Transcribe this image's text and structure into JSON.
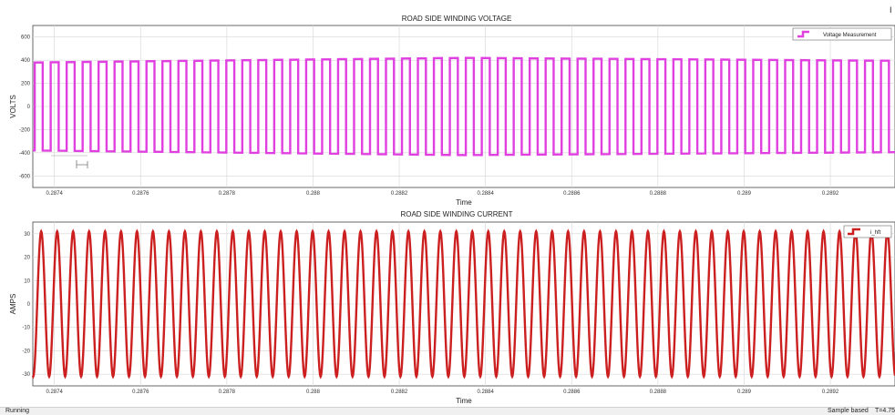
{
  "status_bar": {
    "left": "Running",
    "mode": "Sample based",
    "time": "T=4.75"
  },
  "corner_mark": "I",
  "chart_data": [
    {
      "type": "line",
      "title": "ROAD SIDE WINDING VOLTAGE",
      "xlabel": "Time",
      "ylabel": "VOLTS",
      "xlim": [
        0.28735,
        0.28935
      ],
      "ylim": [
        -700,
        700
      ],
      "xticks": [
        0.2874,
        0.2876,
        0.2878,
        0.288,
        0.2882,
        0.2884,
        0.2886,
        0.2888,
        0.289,
        0.2892
      ],
      "xtick_labels": [
        "0.2874",
        "0.2876",
        "0.2878",
        "0.288",
        "0.2882",
        "0.2884",
        "0.2886",
        "0.2888",
        "0.289",
        "0.2892"
      ],
      "yticks": [
        -600,
        -400,
        -200,
        0,
        200,
        400,
        600
      ],
      "ytick_labels": [
        "-600",
        "-400",
        "-200",
        "0",
        "200",
        "400",
        "600"
      ],
      "grid": true,
      "legend_position": "top-right",
      "series": [
        {
          "name": "Voltage Measurement",
          "color": "#e040e0",
          "waveform": "square",
          "cycles": 54,
          "amplitude_start": 380,
          "amplitude_peak": 420,
          "amplitude_end": 395
        }
      ]
    },
    {
      "type": "line",
      "title": "ROAD SIDE WINDING CURRENT",
      "xlabel": "Time",
      "ylabel": "AMPS",
      "xlim": [
        0.28735,
        0.28935
      ],
      "ylim": [
        -35,
        35
      ],
      "xticks": [
        0.2874,
        0.2876,
        0.2878,
        0.288,
        0.2882,
        0.2884,
        0.2886,
        0.2888,
        0.289,
        0.2892
      ],
      "xtick_labels": [
        "0.2874",
        "0.2876",
        "0.2878",
        "0.288",
        "0.2882",
        "0.2884",
        "0.2886",
        "0.2888",
        "0.289",
        "0.2892"
      ],
      "yticks": [
        -30,
        -20,
        -10,
        0,
        10,
        20,
        30
      ],
      "ytick_labels": [
        "-30",
        "-20",
        "-10",
        "0",
        "10",
        "20",
        "30"
      ],
      "grid": true,
      "legend_position": "top-right",
      "series": [
        {
          "name": "i_hft",
          "color": "#cc1f1f",
          "waveform": "sine",
          "cycles": 54,
          "amplitude": 31
        }
      ]
    }
  ]
}
